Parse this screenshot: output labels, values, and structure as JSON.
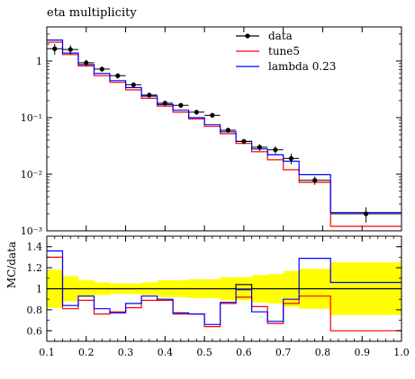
{
  "chart_data": [
    {
      "type": "line",
      "panel": "main",
      "title": "eta multiplicity",
      "xlabel": "",
      "ylabel": "",
      "xlim": [
        0.1,
        1.0
      ],
      "ylim": [
        0.001,
        4
      ],
      "yscale": "log",
      "y_ticks": [
        {
          "value": 0.001,
          "label": "10⁻³"
        },
        {
          "value": 0.01,
          "label": "10⁻²"
        },
        {
          "value": 0.1,
          "label": "10⁻¹"
        },
        {
          "value": 1,
          "label": "1"
        }
      ],
      "legend_position": "top-right",
      "bin_edges": [
        0.1,
        0.14,
        0.18,
        0.22,
        0.26,
        0.3,
        0.34,
        0.38,
        0.42,
        0.46,
        0.5,
        0.54,
        0.58,
        0.62,
        0.66,
        0.7,
        0.74,
        0.82,
        1.0
      ],
      "series": [
        {
          "name": "data",
          "style": "points",
          "color": "#000000",
          "x": [
            0.12,
            0.16,
            0.2,
            0.24,
            0.28,
            0.32,
            0.36,
            0.4,
            0.44,
            0.48,
            0.52,
            0.56,
            0.6,
            0.64,
            0.68,
            0.72,
            0.78,
            0.91
          ],
          "y": [
            1.65,
            1.6,
            0.93,
            0.72,
            0.55,
            0.38,
            0.25,
            0.18,
            0.165,
            0.125,
            0.11,
            0.06,
            0.038,
            0.03,
            0.027,
            0.019,
            0.0078,
            0.002
          ],
          "y_err": [
            0.35,
            0.3,
            0.12,
            0.08,
            0.06,
            0.04,
            0.025,
            0.018,
            0.016,
            0.012,
            0.011,
            0.006,
            0.004,
            0.004,
            0.004,
            0.004,
            0.0013,
            0.0006
          ]
        },
        {
          "name": "tune5",
          "style": "step",
          "color": "#ff0000",
          "values": [
            2.15,
            1.3,
            0.82,
            0.55,
            0.42,
            0.31,
            0.22,
            0.16,
            0.125,
            0.095,
            0.07,
            0.052,
            0.035,
            0.025,
            0.018,
            0.012,
            0.0072,
            0.0012
          ]
        },
        {
          "name": "lambda 0.23",
          "style": "step",
          "color": "#0000ff",
          "values": [
            2.35,
            1.38,
            0.87,
            0.6,
            0.45,
            0.34,
            0.24,
            0.17,
            0.135,
            0.1,
            0.075,
            0.056,
            0.038,
            0.028,
            0.022,
            0.017,
            0.0098,
            0.0021
          ]
        }
      ]
    },
    {
      "type": "line",
      "panel": "ratio",
      "xlabel": "",
      "ylabel": "MC/data",
      "xlim": [
        0.1,
        1.0
      ],
      "ylim": [
        0.5,
        1.5
      ],
      "x_ticks": [
        0.1,
        0.2,
        0.3,
        0.4,
        0.5,
        0.6,
        0.7,
        0.8,
        0.9,
        1.0
      ],
      "x_tick_labels": [
        "0.1",
        "0.2",
        "0.3",
        "0.4",
        "0.5",
        "0.6",
        "0.7",
        "0.8",
        "0.9",
        "1.0"
      ],
      "y_ticks": [
        0.6,
        0.8,
        1,
        1.2,
        1.4
      ],
      "y_tick_labels": [
        "0.6",
        "0.8",
        "1",
        "1.2",
        "1.4"
      ],
      "bin_edges": [
        0.1,
        0.14,
        0.18,
        0.22,
        0.26,
        0.3,
        0.34,
        0.38,
        0.42,
        0.46,
        0.5,
        0.54,
        0.58,
        0.62,
        0.66,
        0.7,
        0.74,
        0.82,
        1.0
      ],
      "reference_line": 1,
      "uncertainty_band": {
        "color": "#ffff00",
        "low": [
          0.82,
          0.88,
          0.92,
          0.94,
          0.95,
          0.95,
          0.94,
          0.92,
          0.92,
          0.91,
          0.91,
          0.89,
          0.89,
          0.87,
          0.86,
          0.83,
          0.81,
          0.75
        ],
        "high": [
          1.18,
          1.12,
          1.08,
          1.06,
          1.05,
          1.05,
          1.06,
          1.08,
          1.08,
          1.09,
          1.09,
          1.11,
          1.11,
          1.13,
          1.14,
          1.17,
          1.19,
          1.25
        ]
      },
      "series": [
        {
          "name": "tune5",
          "color": "#ff0000",
          "values": [
            1.3,
            0.81,
            0.89,
            0.76,
            0.78,
            0.82,
            0.89,
            0.89,
            0.76,
            0.76,
            0.64,
            0.86,
            0.92,
            0.83,
            0.67,
            0.86,
            0.93,
            0.6
          ]
        },
        {
          "name": "lambda 0.23",
          "color": "#0000ff",
          "values": [
            1.36,
            0.84,
            0.93,
            0.81,
            0.77,
            0.86,
            0.93,
            0.9,
            0.77,
            0.76,
            0.66,
            0.87,
            0.99,
            0.78,
            0.69,
            0.9,
            1.29,
            1.06
          ]
        },
        {
          "name": "",
          "color": "#000000",
          "values": [
            1.0,
            1.0,
            1.0,
            1.0,
            1.0,
            1.0,
            1.0,
            1.0,
            1.0,
            1.0,
            1.0,
            1.0,
            1.04,
            1.0,
            1.0,
            1.0,
            1.0,
            1.0
          ]
        }
      ]
    }
  ]
}
